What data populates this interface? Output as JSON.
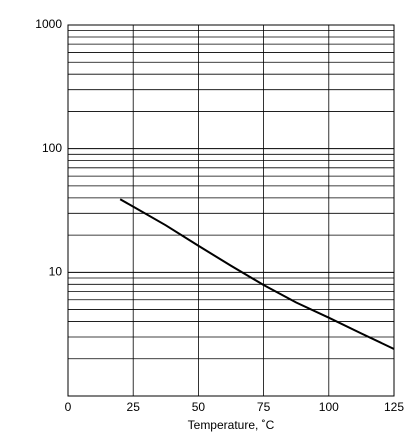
{
  "chart_data": {
    "type": "line",
    "xlabel": "Temperature, ˚C",
    "x": [
      20,
      25,
      37.5,
      50,
      62.5,
      75,
      87.5,
      100,
      112.5,
      125
    ],
    "series": [
      {
        "color": "#000000",
        "values": [
          39,
          34,
          24,
          16.4,
          11.3,
          7.9,
          5.7,
          4.3,
          3.2,
          2.4
        ]
      }
    ],
    "xlim": [
      0,
      125
    ],
    "xticks": [
      0,
      25,
      50,
      75,
      100,
      125
    ],
    "ylim": [
      1,
      1000
    ],
    "yticks": [
      10,
      100,
      1000
    ],
    "ylog": true,
    "grid": true
  }
}
